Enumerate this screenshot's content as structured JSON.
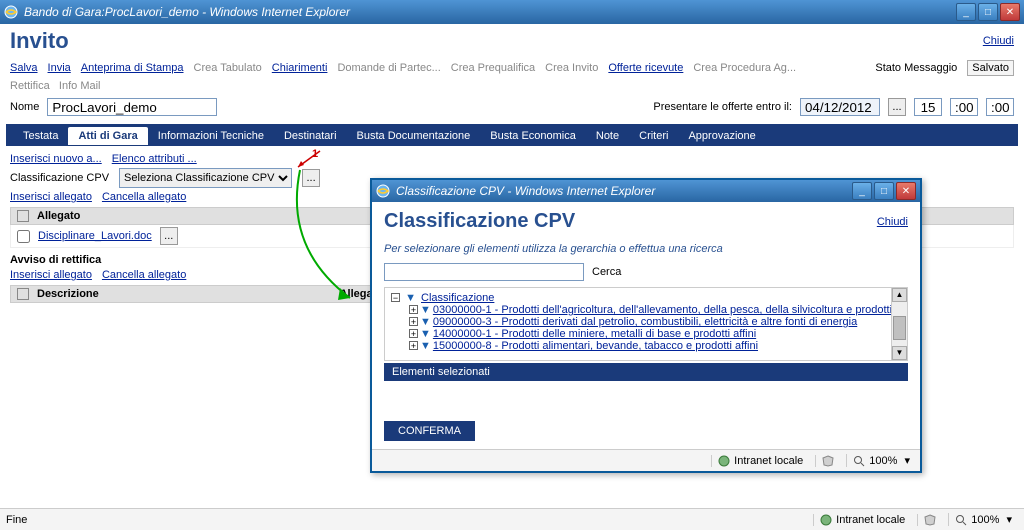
{
  "window": {
    "title": "Bando di Gara:ProcLavori_demo - Windows Internet Explorer"
  },
  "header": {
    "title": "Invito",
    "chiudi": "Chiudi"
  },
  "toolbar": {
    "salva": "Salva",
    "invia": "Invia",
    "anteprima": "Anteprima di Stampa",
    "crea_tabulato": "Crea Tabulato",
    "chiarimenti": "Chiarimenti",
    "domande": "Domande di Partec...",
    "crea_prequalifica": "Crea Prequalifica",
    "crea_invito": "Crea Invito",
    "offerte": "Offerte ricevute",
    "crea_procedura": "Crea Procedura Ag...",
    "stato_label": "Stato Messaggio",
    "stato_value": "Salvato"
  },
  "subtoolbar": {
    "rettifica": "Rettifica",
    "info_mail": "Info Mail"
  },
  "nome": {
    "label": "Nome",
    "value": "ProcLavori_demo",
    "presentare": "Presentare le offerte entro il:",
    "date": "04/12/2012",
    "hour": "15",
    "min": ":00",
    "sec": ":00"
  },
  "tabs": [
    "Testata",
    "Atti di Gara",
    "Informazioni Tecniche",
    "Destinatari",
    "Busta Documentazione",
    "Busta Economica",
    "Note",
    "Criteri",
    "Approvazione"
  ],
  "active_tab": 1,
  "attidigara": {
    "inserisci_nuovo": "Inserisci nuovo a...",
    "elenco_attributi": "Elenco attributi ...",
    "class_label": "Classificazione CPV",
    "class_select": "Seleziona Classificazione CPV",
    "inserisci_allegato": "Inserisci allegato",
    "cancella_allegato": "Cancella allegato",
    "allegato_hdr": "Allegato",
    "file": "Disciplinare_Lavori.doc",
    "avviso": "Avviso di rettifica",
    "descrizione": "Descrizione",
    "allegato_col": "Allegato"
  },
  "annotation": {
    "one": "1"
  },
  "popup": {
    "window_title": "Classificazione CPV - Windows Internet Explorer",
    "title": "Classificazione CPV",
    "chiudi": "Chiudi",
    "hint": "Per selezionare gli elementi utilizza la gerarchia o effettua una ricerca",
    "cerca": "Cerca",
    "root": "Classificazione",
    "items": [
      "03000000-1 - Prodotti dell'agricoltura, dell'allevamento, della pesca, della silvicoltura e prodotti affini",
      "09000000-3 - Prodotti derivati dal petrolio, combustibili, elettricità e altre fonti di energia",
      "14000000-1 - Prodotti delle miniere, metalli di base e prodotti affini",
      "15000000-8 - Prodotti alimentari, bevande, tabacco e prodotti affini"
    ],
    "selezionati": "Elementi selezionati",
    "conferma": "CONFERMA"
  },
  "status": {
    "intranet": "Intranet locale",
    "zoom": "100%",
    "fine": "Fine"
  }
}
